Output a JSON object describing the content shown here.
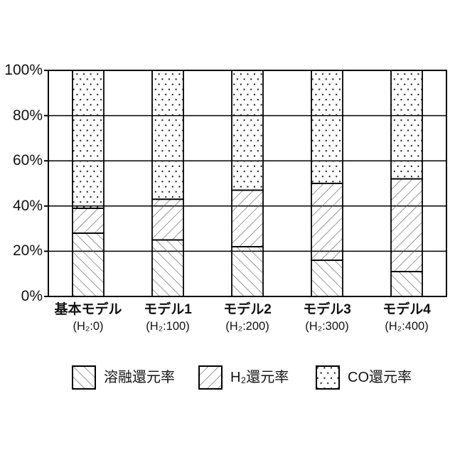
{
  "chart_data": {
    "type": "bar",
    "stacked": true,
    "title": "",
    "categories": [
      "基本モデル",
      "モデル1",
      "モデル2",
      "モデル3",
      "モデル4"
    ],
    "category_sublabels": [
      "(H₂:0)",
      "(H₂:100)",
      "(H₂:200)",
      "(H₂:300)",
      "(H₂:400)"
    ],
    "series": [
      {
        "name": "溶融還元率",
        "pattern": "backslash-hatch",
        "values": [
          28,
          25,
          22,
          16,
          11
        ]
      },
      {
        "name": "H₂還元率",
        "pattern": "slash-hatch",
        "values": [
          11,
          18,
          25,
          34,
          41
        ]
      },
      {
        "name": "CO還元率",
        "pattern": "dots",
        "values": [
          61,
          57,
          53,
          50,
          48
        ]
      }
    ],
    "ylim": [
      0,
      100
    ],
    "yticks": [
      "0%",
      "20%",
      "40%",
      "60%",
      "80%",
      "100%"
    ],
    "grid": true,
    "legend_position": "bottom",
    "colors": {
      "stroke": "#000000",
      "hatch_line": "#606060",
      "dot": "#151515",
      "background": "#ffffff"
    }
  }
}
